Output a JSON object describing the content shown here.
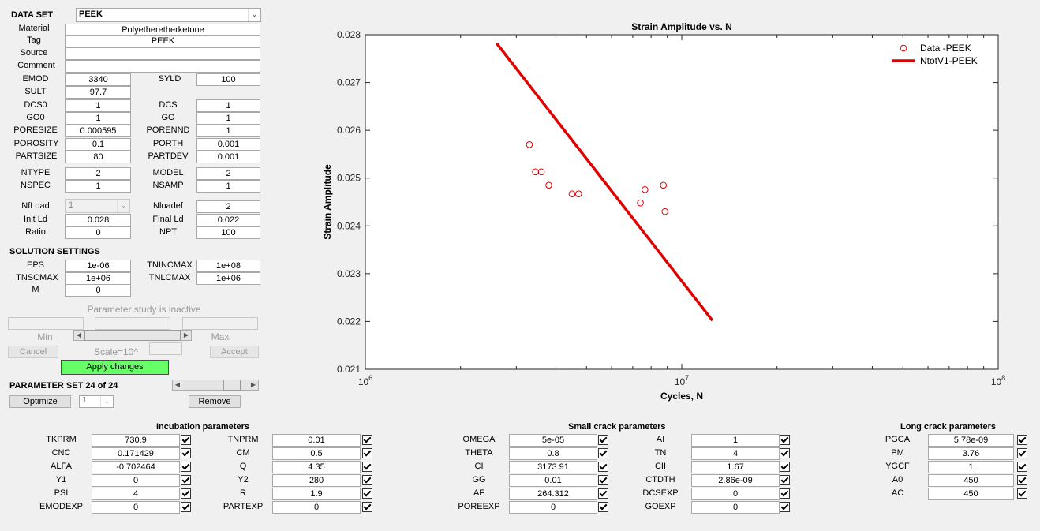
{
  "dataset": {
    "label": "DATA SET",
    "selected": "PEEK"
  },
  "material": {
    "material_label": "Material",
    "material_value": "Polyetheretherketone",
    "tag_label": "Tag",
    "tag_value": "PEEK",
    "source_label": "Source",
    "source_value": "",
    "comment_label": "Comment",
    "comment_value": ""
  },
  "props": {
    "emod": {
      "label": "EMOD",
      "value": "3340"
    },
    "syld": {
      "label": "SYLD",
      "value": "100"
    },
    "sult": {
      "label": "SULT",
      "value": "97.7"
    },
    "dcs0": {
      "label": "DCS0",
      "value": "1"
    },
    "dcs": {
      "label": "DCS",
      "value": "1"
    },
    "go0": {
      "label": "GO0",
      "value": "1"
    },
    "go": {
      "label": "GO",
      "value": "1"
    },
    "poresize": {
      "label": "PORESIZE",
      "value": "0.000595"
    },
    "porennd": {
      "label": "PORENND",
      "value": "1"
    },
    "porosity": {
      "label": "POROSITY",
      "value": "0.1"
    },
    "porth": {
      "label": "PORTH",
      "value": "0.001"
    },
    "partsize": {
      "label": "PARTSIZE",
      "value": "80"
    },
    "partdev": {
      "label": "PARTDEV",
      "value": "0.001"
    },
    "ntype": {
      "label": "NTYPE",
      "value": "2"
    },
    "model": {
      "label": "MODEL",
      "value": "2"
    },
    "nspec": {
      "label": "NSPEC",
      "value": "1"
    },
    "nsamp": {
      "label": "NSAMP",
      "value": "1"
    },
    "nfload": {
      "label": "NfLoad",
      "value": "1"
    },
    "nloadef": {
      "label": "Nloadef",
      "value": "2"
    },
    "initld": {
      "label": "Init Ld",
      "value": "0.028"
    },
    "finalld": {
      "label": "Final Ld",
      "value": "0.022"
    },
    "ratio": {
      "label": "Ratio",
      "value": "0"
    },
    "npt": {
      "label": "NPT",
      "value": "100"
    }
  },
  "solution": {
    "title": "SOLUTION SETTINGS",
    "eps": {
      "label": "EPS",
      "value": "1e-06"
    },
    "tnincmax": {
      "label": "TNINCMAX",
      "value": "1e+08"
    },
    "tnscmax": {
      "label": "TNSCMAX",
      "value": "1e+06"
    },
    "tnlcmax": {
      "label": "TNLCMAX",
      "value": "1e+06"
    },
    "m": {
      "label": "M",
      "value": "0"
    }
  },
  "param_study": {
    "status": "Parameter study is inactive",
    "min_label": "Min",
    "max_label": "Max",
    "cancel": "Cancel",
    "scale": "Scale=10^",
    "accept": "Accept",
    "apply": "Apply changes"
  },
  "param_set": {
    "label": "PARAMETER SET 24 of 24",
    "slider_level": 0.83,
    "optimize": "Optimize",
    "select_value": "1",
    "remove": "Remove"
  },
  "incubation": {
    "title": "Incubation parameters",
    "left": [
      {
        "label": "TKPRM",
        "value": "730.9"
      },
      {
        "label": "CNC",
        "value": "0.171429"
      },
      {
        "label": "ALFA",
        "value": "-0.702464"
      },
      {
        "label": "Y1",
        "value": "0"
      },
      {
        "label": "PSI",
        "value": "4"
      },
      {
        "label": "EMODEXP",
        "value": "0"
      }
    ],
    "right": [
      {
        "label": "TNPRM",
        "value": "0.01"
      },
      {
        "label": "CM",
        "value": "0.5"
      },
      {
        "label": "Q",
        "value": "4.35"
      },
      {
        "label": "Y2",
        "value": "280"
      },
      {
        "label": "R",
        "value": "1.9"
      },
      {
        "label": "PARTEXP",
        "value": "0"
      }
    ]
  },
  "small_crack": {
    "title": "Small crack parameters",
    "left": [
      {
        "label": "OMEGA",
        "value": "5e-05"
      },
      {
        "label": "THETA",
        "value": "0.8"
      },
      {
        "label": "CI",
        "value": "3173.91"
      },
      {
        "label": "GG",
        "value": "0.01"
      },
      {
        "label": "AF",
        "value": "264.312"
      },
      {
        "label": "POREEXP",
        "value": "0"
      }
    ],
    "right": [
      {
        "label": "AI",
        "value": "1"
      },
      {
        "label": "TN",
        "value": "4"
      },
      {
        "label": "CII",
        "value": "1.67"
      },
      {
        "label": "CTDTH",
        "value": "2.86e-09"
      },
      {
        "label": "DCSEXP",
        "value": "0"
      },
      {
        "label": "GOEXP",
        "value": "0"
      }
    ]
  },
  "long_crack": {
    "title": "Long crack parameters",
    "items": [
      {
        "label": "PGCA",
        "value": "5.78e-09"
      },
      {
        "label": "PM",
        "value": "3.76"
      },
      {
        "label": "YGCF",
        "value": "1"
      },
      {
        "label": "A0",
        "value": "450"
      },
      {
        "label": "AC",
        "value": "450"
      }
    ]
  },
  "chart_data": {
    "type": "scatter",
    "title": "Strain Amplitude vs. N",
    "xlabel": "Cycles, N",
    "ylabel": "Strain Amplitude",
    "xscale": "log",
    "xlim": [
      1000000,
      100000000
    ],
    "ylim": [
      0.021,
      0.028
    ],
    "xtick_base": "10",
    "xtick_exponents": [
      "6",
      "7",
      "8"
    ],
    "yticks": [
      "0.021",
      "0.022",
      "0.023",
      "0.024",
      "0.025",
      "0.026",
      "0.027",
      "0.028"
    ],
    "legend_position": "top-right",
    "series": [
      {
        "name": "Data -PEEK",
        "kind": "markers",
        "color": "#e00000",
        "x": [
          3300000,
          3450000,
          3600000,
          3800000,
          4500000,
          4720000,
          7400000,
          7650000,
          8750000,
          8850000
        ],
        "y": [
          0.0257,
          0.02513,
          0.02513,
          0.02485,
          0.02467,
          0.02467,
          0.02448,
          0.02476,
          0.02485,
          0.0243
        ]
      },
      {
        "name": "NtotV1-PEEK",
        "kind": "line",
        "color": "#e00000",
        "x": [
          2600000,
          12500000
        ],
        "y": [
          0.02782,
          0.02202
        ]
      }
    ]
  }
}
